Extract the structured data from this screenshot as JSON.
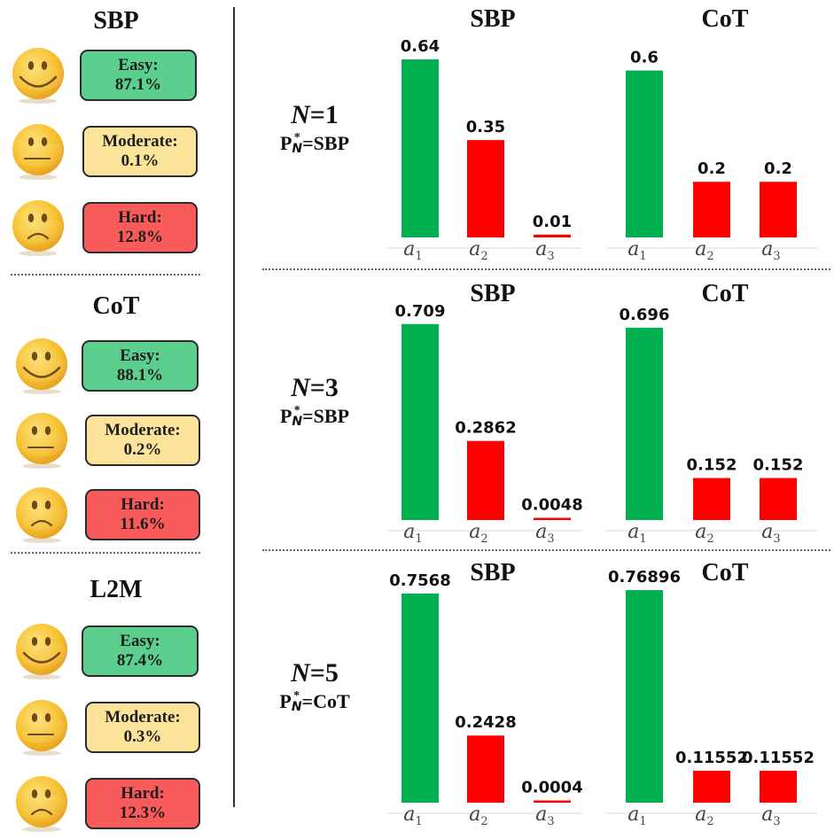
{
  "colors": {
    "easy_box": "#5ccf8f",
    "moderate_box": "#fce39a",
    "hard_box": "#f95a5a",
    "bar_green": "#00b050",
    "bar_red": "#ff0000",
    "emoji_face": "#f6c02f"
  },
  "left_panel": {
    "methods": [
      {
        "name": "SBP",
        "levels": [
          {
            "mood": "happy",
            "label": "Easy:",
            "value": "87.1%"
          },
          {
            "mood": "neutral",
            "label": "Moderate:",
            "value": "0.1%"
          },
          {
            "mood": "sad",
            "label": "Hard:",
            "value": "12.8%"
          }
        ]
      },
      {
        "name": "CoT",
        "levels": [
          {
            "mood": "happy",
            "label": "Easy:",
            "value": "88.1%"
          },
          {
            "mood": "neutral",
            "label": "Moderate:",
            "value": "0.2%"
          },
          {
            "mood": "sad",
            "label": "Hard:",
            "value": "11.6%"
          }
        ]
      },
      {
        "name": "L2M",
        "levels": [
          {
            "mood": "happy",
            "label": "Easy:",
            "value": "87.4%"
          },
          {
            "mood": "neutral",
            "label": "Moderate:",
            "value": "0.3%"
          },
          {
            "mood": "sad",
            "label": "Hard:",
            "value": "12.3%"
          }
        ]
      }
    ]
  },
  "right_panel": {
    "rows": [
      {
        "n_symbol": "N",
        "n_value": "=1",
        "p_symbol": "P",
        "p_sup": "*",
        "p_sub": "N",
        "p_value": "=SBP"
      },
      {
        "n_symbol": "N",
        "n_value": "=3",
        "p_symbol": "P",
        "p_sup": "*",
        "p_sub": "N",
        "p_value": "=SBP"
      },
      {
        "n_symbol": "N",
        "n_value": "=5",
        "p_symbol": "P",
        "p_sup": "*",
        "p_sub": "N",
        "p_value": "=CoT"
      }
    ]
  },
  "chart_data": [
    {
      "type": "bar",
      "row": "N=1",
      "title": "SBP",
      "categories": [
        "a1",
        "a2",
        "a3"
      ],
      "values": [
        0.64,
        0.35,
        0.01
      ],
      "value_labels": [
        "0.64",
        "0.35",
        "0.01"
      ],
      "highlight_index": 0
    },
    {
      "type": "bar",
      "row": "N=1",
      "title": "CoT",
      "categories": [
        "a1",
        "a2",
        "a3"
      ],
      "values": [
        0.6,
        0.2,
        0.2
      ],
      "value_labels": [
        "0.6",
        "0.2",
        "0.2"
      ],
      "highlight_index": 0
    },
    {
      "type": "bar",
      "row": "N=3",
      "title": "SBP",
      "categories": [
        "a1",
        "a2",
        "a3"
      ],
      "values": [
        0.709,
        0.2862,
        0.0048
      ],
      "value_labels": [
        "0.709",
        "0.2862",
        "0.0048"
      ],
      "highlight_index": 0
    },
    {
      "type": "bar",
      "row": "N=3",
      "title": "CoT",
      "categories": [
        "a1",
        "a2",
        "a3"
      ],
      "values": [
        0.696,
        0.152,
        0.152
      ],
      "value_labels": [
        "0.696",
        "0.152",
        "0.152"
      ],
      "highlight_index": 0
    },
    {
      "type": "bar",
      "row": "N=5",
      "title": "SBP",
      "categories": [
        "a1",
        "a2",
        "a3"
      ],
      "values": [
        0.7568,
        0.2428,
        0.0004
      ],
      "value_labels": [
        "0.7568",
        "0.2428",
        "0.0004"
      ],
      "highlight_index": 0
    },
    {
      "type": "bar",
      "row": "N=5",
      "title": "CoT",
      "categories": [
        "a1",
        "a2",
        "a3"
      ],
      "values": [
        0.76896,
        0.11552,
        0.11552
      ],
      "value_labels": [
        "0.76896",
        "0.11552",
        "0.11552"
      ],
      "highlight_index": 0
    }
  ]
}
